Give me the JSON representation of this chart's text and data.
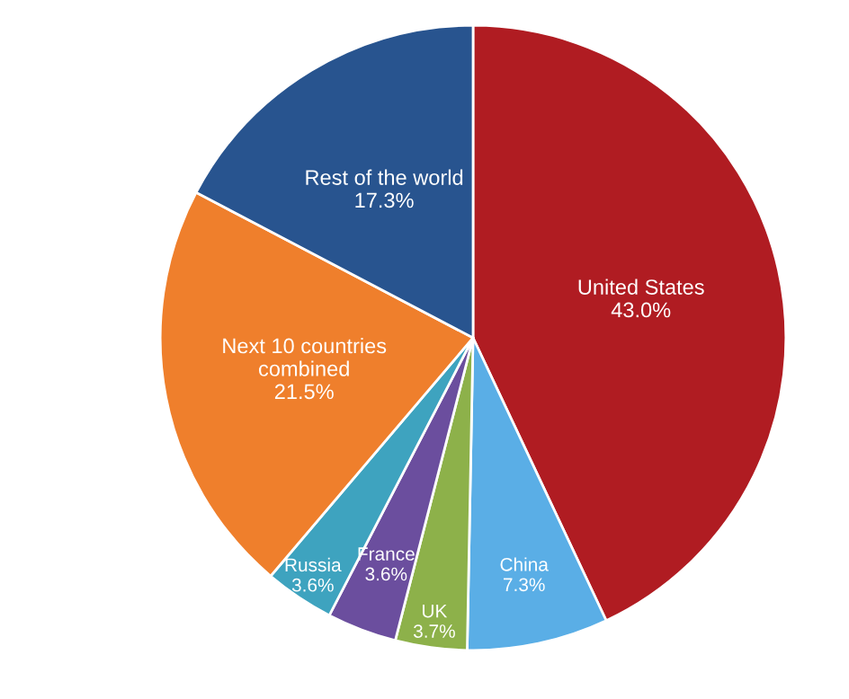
{
  "chart_data": {
    "type": "pie",
    "categories": [
      "United States",
      "China",
      "UK",
      "France",
      "Russia",
      "Next 10 countries\ncombined",
      "Rest of the world"
    ],
    "values": [
      43.0,
      7.3,
      3.7,
      3.6,
      3.6,
      21.5,
      17.3
    ],
    "value_labels": [
      "43.0%",
      "7.3%",
      "3.7%",
      "3.6%",
      "3.6%",
      "21.5%",
      "17.3%"
    ],
    "colors": [
      "#b01c22",
      "#5aaee6",
      "#8db14a",
      "#6b4e9e",
      "#3ea3bf",
      "#ef7f2c",
      "#28548f"
    ]
  }
}
